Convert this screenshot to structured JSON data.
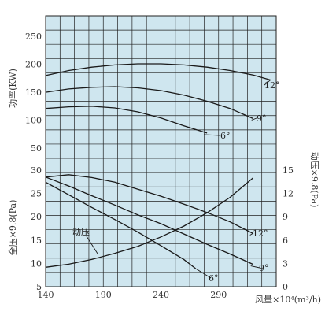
{
  "chart_data": {
    "type": "line",
    "x_axis": {
      "label": "风量×10⁴(m³/h)",
      "ticks": [
        "140",
        "190",
        "240",
        "290"
      ],
      "range": [
        140,
        340
      ]
    },
    "power_panel": {
      "ylabel": "功率(KW)",
      "ticks": [
        "50",
        "100",
        "150",
        "200",
        "250"
      ],
      "range": [
        43,
        287
      ],
      "series": [
        {
          "name": "12°",
          "x": [
            140,
            160,
            180,
            200,
            220,
            240,
            260,
            280,
            300,
            320,
            335
          ],
          "y": [
            180,
            189,
            195,
            199,
            201,
            201,
            199,
            195,
            189,
            181,
            172
          ]
        },
        {
          "name": "9°",
          "x": [
            140,
            160,
            180,
            200,
            220,
            240,
            260,
            280,
            300,
            320
          ],
          "y": [
            150,
            156,
            159,
            160,
            158,
            153,
            145,
            134,
            121,
            103
          ]
        },
        {
          "name": "6°",
          "x": [
            140,
            160,
            180,
            200,
            220,
            240,
            260,
            280
          ],
          "y": [
            121,
            124,
            125,
            122,
            115,
            104,
            90,
            77
          ]
        }
      ]
    },
    "pressure_panel": {
      "ylabel_left": "全压×9.8(Pa)",
      "ylabel_right": "动压×9.8(Pa)",
      "left_ticks": [
        "5",
        "10",
        "15",
        "20",
        "25",
        "30"
      ],
      "left_range": [
        5,
        31
      ],
      "right_ticks": [
        "0",
        "3",
        "6",
        "9",
        "12",
        "15"
      ],
      "right_range": [
        0,
        15.6
      ],
      "series": [
        {
          "name": "12°",
          "x": [
            140,
            160,
            180,
            200,
            220,
            240,
            260,
            280,
            300,
            320
          ],
          "y": [
            28.5,
            29,
            28.4,
            27.4,
            25.9,
            24.4,
            22.7,
            20.9,
            18.9,
            16.4
          ]
        },
        {
          "name": "9°",
          "x": [
            140,
            160,
            180,
            200,
            220,
            240,
            260,
            280,
            300,
            320
          ],
          "y": [
            28.5,
            26.6,
            24.5,
            22.5,
            20.4,
            18.5,
            16.3,
            14.1,
            12,
            9.8
          ]
        },
        {
          "name": "6°",
          "x": [
            140,
            160,
            180,
            200,
            220,
            240,
            260,
            270
          ],
          "y": [
            27.4,
            24.7,
            22,
            19.4,
            16.7,
            13.8,
            10.8,
            8.9
          ]
        },
        {
          "name": "动压",
          "axis": "right",
          "x": [
            140,
            160,
            180,
            200,
            220,
            240,
            260,
            280,
            300,
            320
          ],
          "y": [
            2.5,
            2.9,
            3.5,
            4.3,
            5.2,
            6.4,
            7.8,
            9.5,
            11.5,
            14
          ]
        }
      ]
    }
  }
}
